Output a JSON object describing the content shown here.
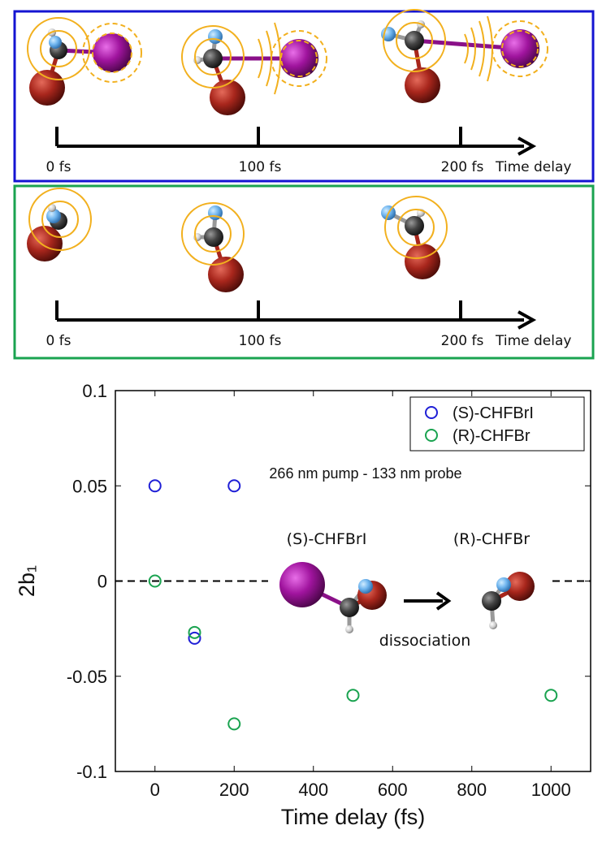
{
  "panels": [
    {
      "ticks": [
        "0 fs",
        "100 fs",
        "200 fs"
      ],
      "axis_label": "Time delay"
    },
    {
      "ticks": [
        "0 fs",
        "100 fs",
        "200 fs"
      ],
      "axis_label": "Time delay"
    }
  ],
  "chart_data": {
    "type": "scatter",
    "xlabel": "Time delay (fs)",
    "ylabel": "2b₁",
    "xlim": [
      -100,
      1100
    ],
    "xticks": [
      0,
      200,
      400,
      600,
      800,
      1000
    ],
    "ylim": [
      -0.1,
      0.1
    ],
    "yticks": [
      -0.1,
      -0.05,
      0,
      0.05,
      0.1
    ],
    "reference_line": 0,
    "legend": "top-right",
    "annotations": [
      "266 nm pump - 133 nm probe",
      "(S)-CHFBrI",
      "(R)-CHFBr",
      "dissociation"
    ],
    "series": [
      {
        "name": "(S)-CHFBrI",
        "color": "#1f1fd6",
        "x": [
          0,
          100,
          200
        ],
        "values": [
          0.05,
          -0.03,
          0.05
        ]
      },
      {
        "name": "(R)-CHFBr",
        "color": "#1aa350",
        "x": [
          0,
          100,
          200,
          500,
          1000
        ],
        "values": [
          0,
          -0.027,
          -0.075,
          -0.06,
          -0.06
        ]
      }
    ]
  }
}
